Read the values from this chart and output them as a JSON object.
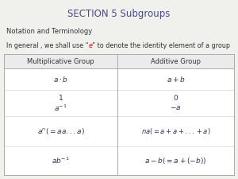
{
  "title": "SECTION 5 Subgroups",
  "title_color": "#4a4a8c",
  "subtitle": "Notation and Terminology",
  "desc_pre": "In general , we shall use “",
  "desc_e": "e",
  "desc_post": "” to denote the identity element of a group",
  "desc_e_color": "#cc0000",
  "col1_header": "Multiplicative Group",
  "col2_header": "Additive Group",
  "bg_color": "#f0f0ec",
  "table_bg": "#ffffff",
  "header_bg": "#ebebeb",
  "text_color": "#333333",
  "math_color": "#333355",
  "line_color": "#aaaaaa",
  "font_size_title": 8.5,
  "font_size_body": 6.0,
  "font_size_desc": 5.8,
  "font_size_math": 6.5
}
